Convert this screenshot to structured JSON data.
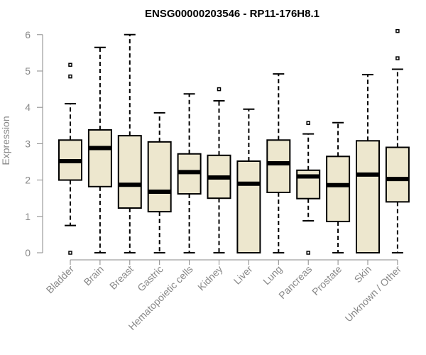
{
  "chart_data": {
    "type": "boxplot",
    "title": "ENSG00000203546 - RP11-176H8.1",
    "xlabel": "",
    "ylabel": "Expression",
    "ylim": [
      0,
      6
    ],
    "yticks": [
      0,
      1,
      2,
      3,
      4,
      5,
      6
    ],
    "grid": false,
    "box_fill": "#EDE7CE",
    "line_color": "#000000",
    "axis_color": "#888888",
    "categories": [
      "Bladder",
      "Brain",
      "Breast",
      "Gastric",
      "Hematopoietic cells",
      "Kidney",
      "Liver",
      "Lung",
      "Pancreas",
      "Prostate",
      "Skin",
      "Unknown / Other"
    ],
    "boxes": [
      {
        "min": 0.75,
        "q1": 2.0,
        "median": 2.52,
        "q3": 3.1,
        "max": 4.1,
        "outliers": [
          0,
          4.85,
          5.17
        ]
      },
      {
        "min": 0,
        "q1": 1.82,
        "median": 2.88,
        "q3": 3.38,
        "max": 5.65,
        "outliers": []
      },
      {
        "min": 0,
        "q1": 1.23,
        "median": 1.87,
        "q3": 3.22,
        "max": 6.0,
        "outliers": []
      },
      {
        "min": 0,
        "q1": 1.13,
        "median": 1.68,
        "q3": 3.05,
        "max": 3.85,
        "outliers": []
      },
      {
        "min": 0,
        "q1": 1.62,
        "median": 2.22,
        "q3": 2.72,
        "max": 4.37,
        "outliers": []
      },
      {
        "min": 0,
        "q1": 1.5,
        "median": 2.07,
        "q3": 2.68,
        "max": 4.18,
        "outliers": [
          4.5
        ]
      },
      {
        "min": 0,
        "q1": 0,
        "median": 1.9,
        "q3": 2.52,
        "max": 3.95,
        "outliers": []
      },
      {
        "min": 0,
        "q1": 1.66,
        "median": 2.46,
        "q3": 3.1,
        "max": 4.92,
        "outliers": []
      },
      {
        "min": 0.88,
        "q1": 1.49,
        "median": 2.1,
        "q3": 2.27,
        "max": 3.27,
        "outliers": [
          0,
          3.57
        ]
      },
      {
        "min": 0,
        "q1": 0.86,
        "median": 1.86,
        "q3": 2.65,
        "max": 3.58,
        "outliers": []
      },
      {
        "min": 0,
        "q1": 0,
        "median": 2.15,
        "q3": 3.08,
        "max": 4.9,
        "outliers": []
      },
      {
        "min": 0,
        "q1": 1.4,
        "median": 2.03,
        "q3": 2.9,
        "max": 5.05,
        "outliers": [
          5.35,
          6.1
        ]
      }
    ]
  }
}
